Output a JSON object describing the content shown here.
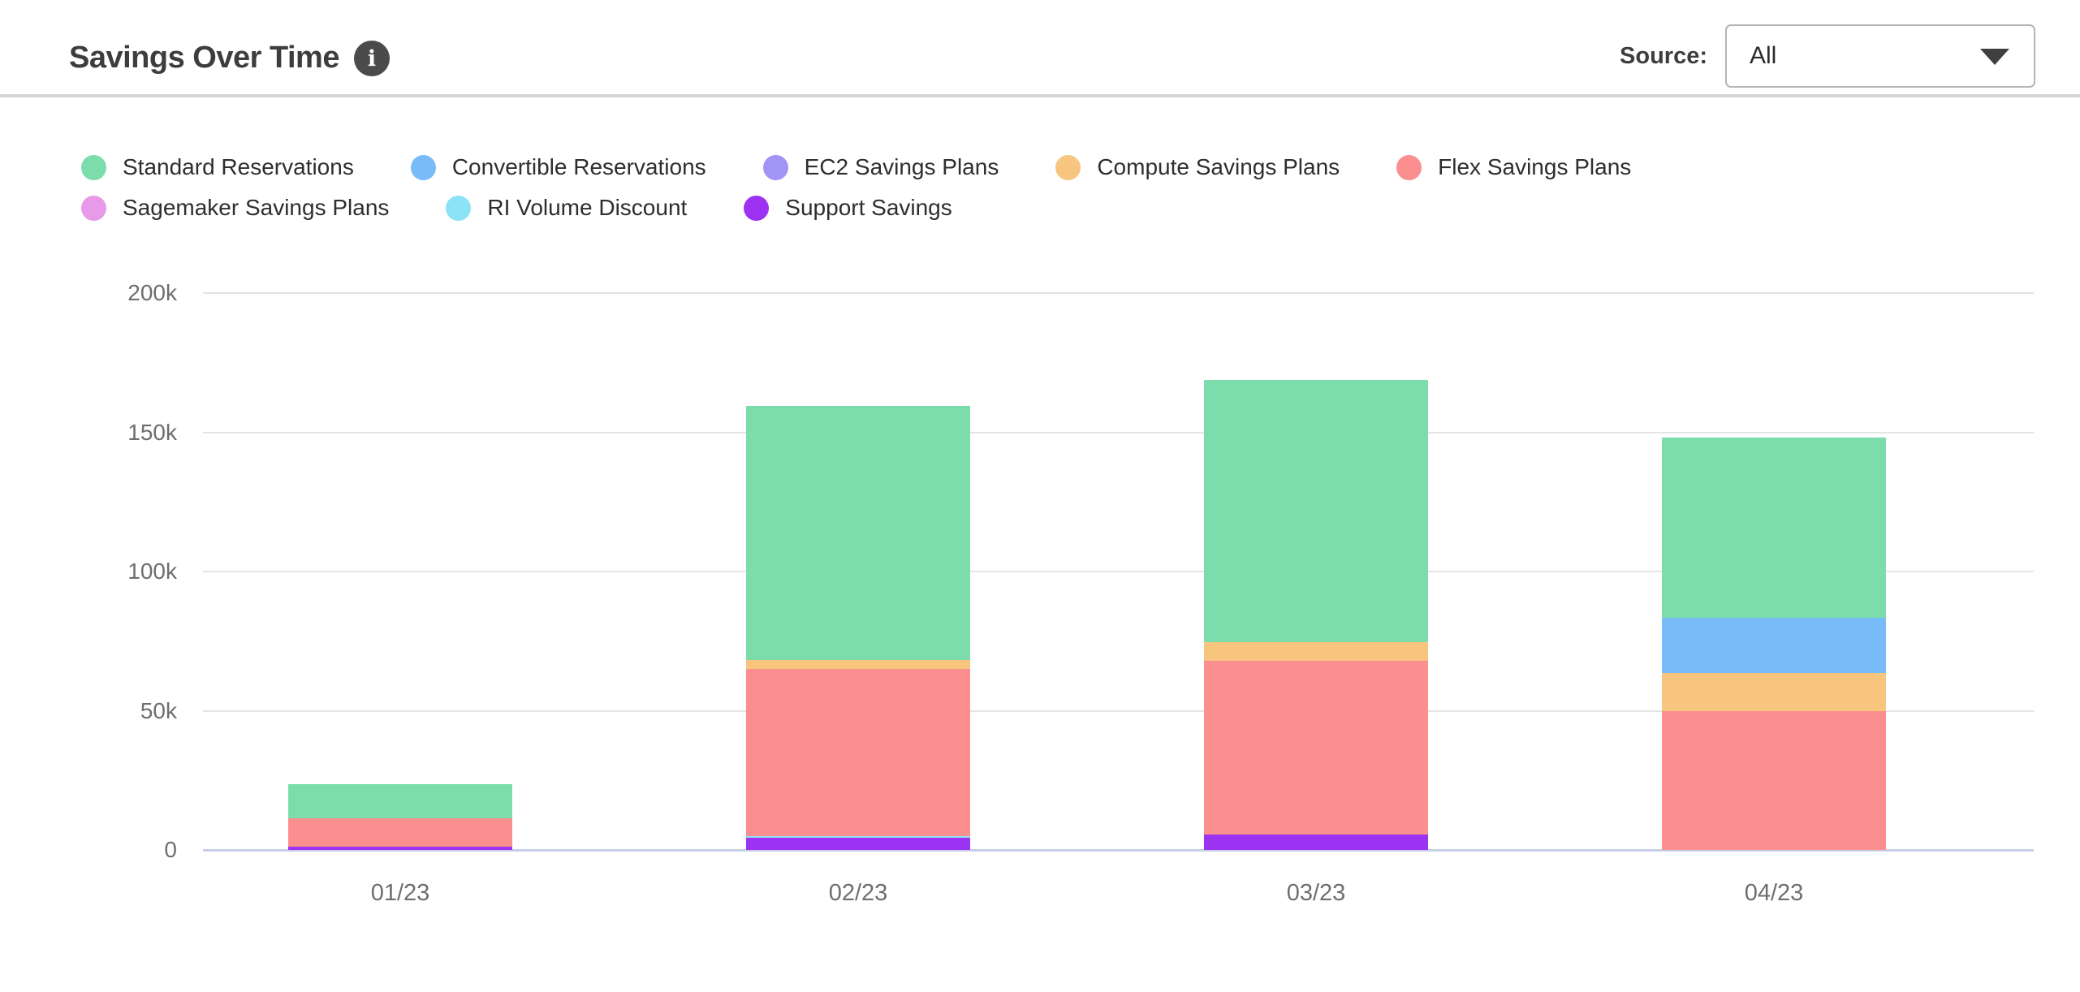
{
  "header": {
    "title": "Savings Over Time",
    "info_glyph": "i"
  },
  "source_control": {
    "label": "Source:",
    "value": "All"
  },
  "chart_data": {
    "type": "bar",
    "stacked": true,
    "title": "Savings Over Time",
    "xlabel": "",
    "ylabel": "",
    "ylim": [
      0,
      200
    ],
    "unit": "k",
    "grid": true,
    "legend_position": "top",
    "categories": [
      "01/23",
      "02/23",
      "03/23",
      "04/23"
    ],
    "yticks": [
      {
        "value": 0,
        "label": "0"
      },
      {
        "value": 50,
        "label": "50k"
      },
      {
        "value": 100,
        "label": "100k"
      },
      {
        "value": 150,
        "label": "150k"
      },
      {
        "value": 200,
        "label": "200k"
      }
    ],
    "series": [
      {
        "name": "Standard Reservations",
        "color": "#7cdcab",
        "values": [
          12.2,
          91.5,
          94.2,
          64.5
        ]
      },
      {
        "name": "Convertible Reservations",
        "color": "#79bbf9",
        "values": [
          0,
          0,
          0,
          20
        ]
      },
      {
        "name": "EC2 Savings Plans",
        "color": "#a294f5",
        "values": [
          0,
          0,
          0,
          0
        ]
      },
      {
        "name": "Compute Savings Plans",
        "color": "#f8c57e",
        "values": [
          0,
          3.2,
          6.5,
          13.5
        ]
      },
      {
        "name": "Flex Savings Plans",
        "color": "#fb8e8e",
        "values": [
          10.2,
          59.8,
          62.5,
          50
        ]
      },
      {
        "name": "Sagemaker Savings Plans",
        "color": "#e89ae9",
        "values": [
          0,
          0,
          0,
          0
        ]
      },
      {
        "name": "RI Volume Discount",
        "color": "#8ce2f6",
        "values": [
          0,
          0.8,
          0,
          0
        ]
      },
      {
        "name": "Support Savings",
        "color": "#9c33f2",
        "values": [
          1.2,
          4.3,
          5.5,
          0
        ]
      }
    ],
    "stack_order_bottom_to_top": [
      "Support Savings",
      "RI Volume Discount",
      "Sagemaker Savings Plans",
      "Flex Savings Plans",
      "Compute Savings Plans",
      "EC2 Savings Plans",
      "Convertible Reservations",
      "Standard Reservations"
    ],
    "totals": [
      23.6,
      159.6,
      168.7,
      148.0
    ]
  }
}
